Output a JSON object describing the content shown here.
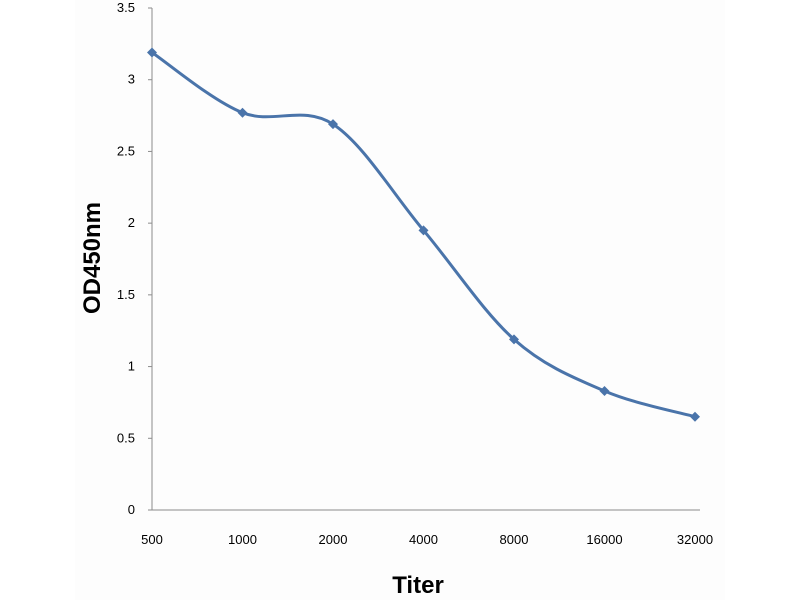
{
  "chart_data": {
    "type": "line",
    "categories": [
      "500",
      "1000",
      "2000",
      "4000",
      "8000",
      "16000",
      "32000"
    ],
    "series": [
      {
        "values": [
          3.19,
          2.77,
          2.69,
          1.95,
          1.19,
          0.83,
          0.65
        ]
      }
    ],
    "xlabel": "Titer",
    "ylabel": "OD450nm",
    "ylim": [
      0,
      3.5
    ],
    "yticks": [
      "0",
      "0.5",
      "1",
      "1.5",
      "2",
      "2.5",
      "3",
      "3.5"
    ],
    "grid": false,
    "smooth": true,
    "marker": "diamond",
    "line_color": "#4a74aa"
  }
}
